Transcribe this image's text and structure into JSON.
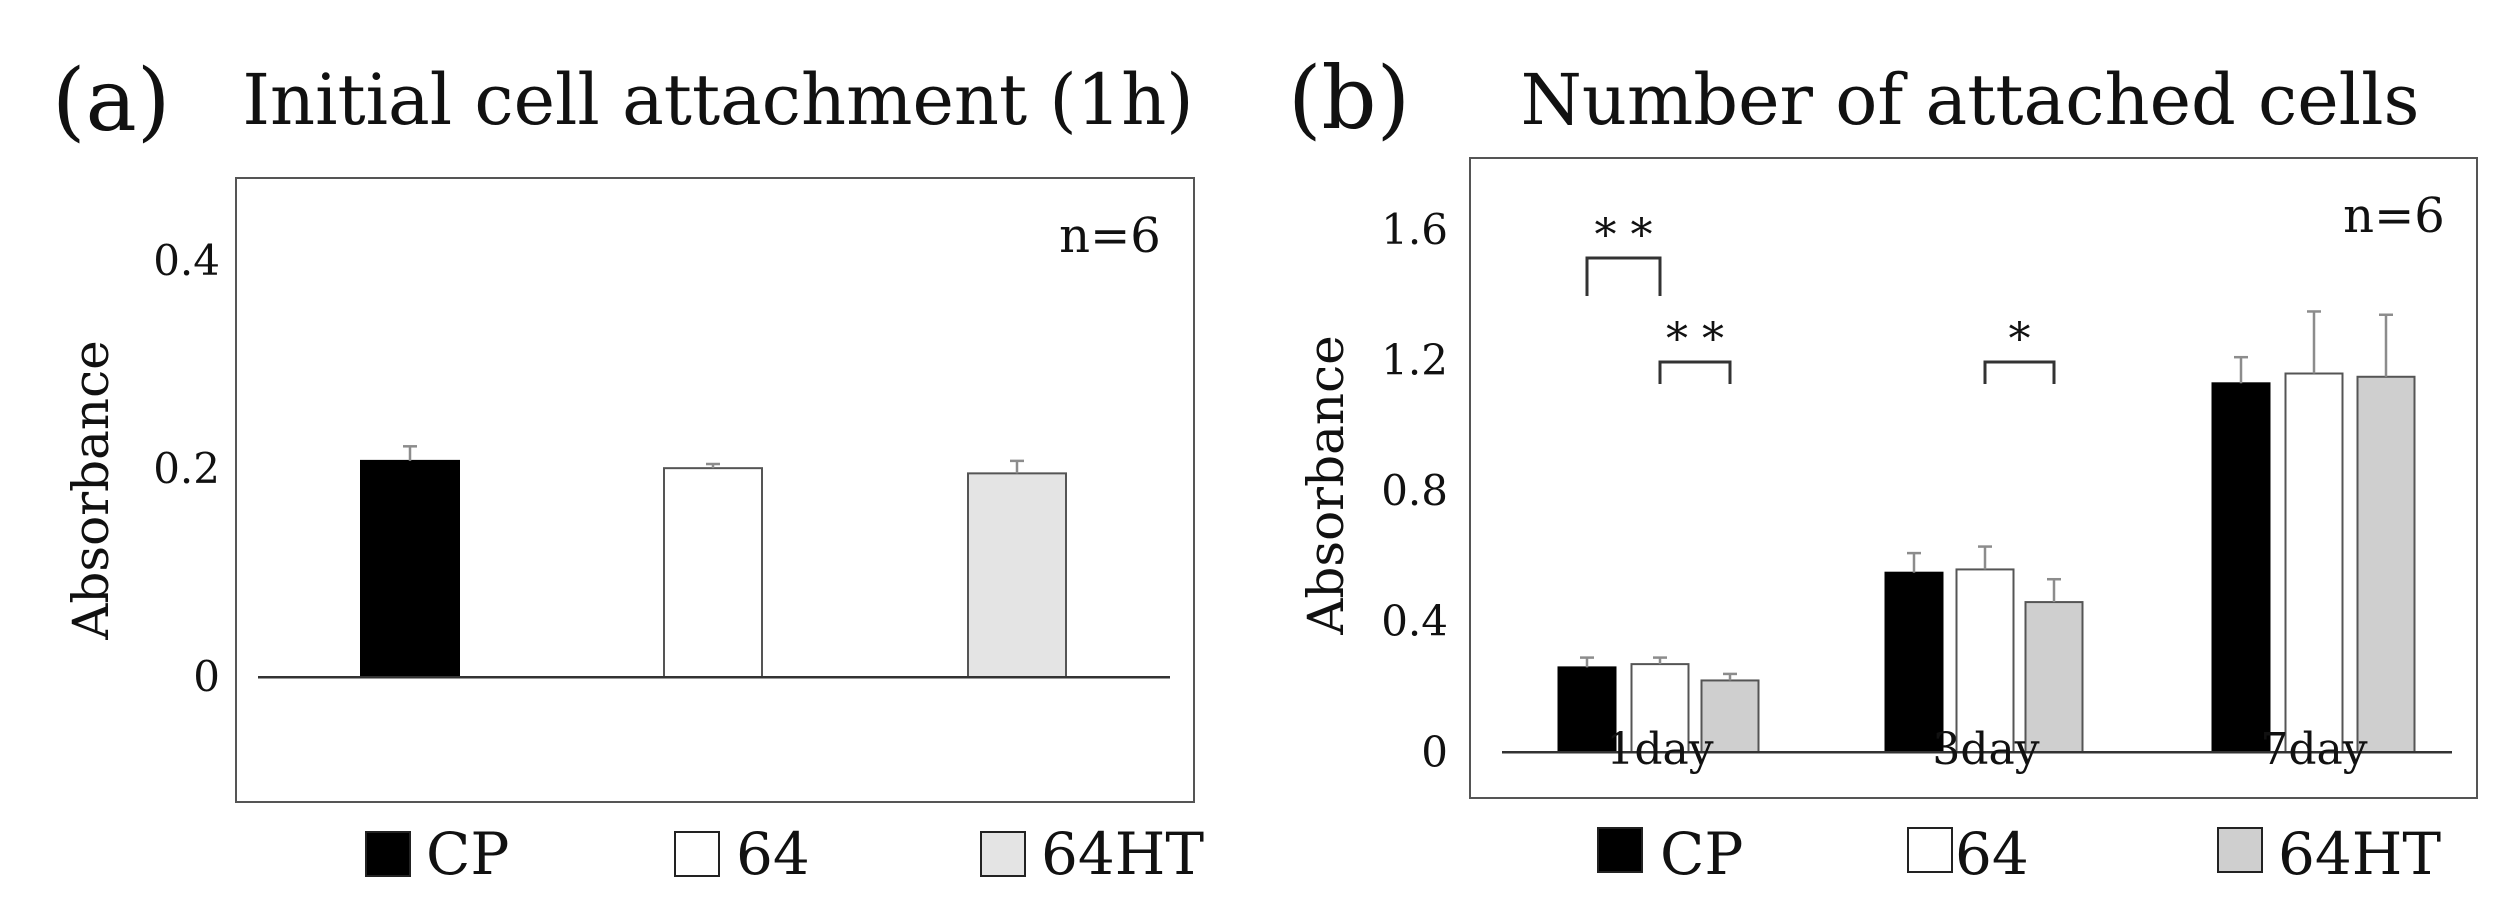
{
  "chart_data": [
    {
      "panel": "(a)",
      "type": "bar",
      "title": "Initial cell attachment (1h)",
      "xlabel": "",
      "ylabel": "Absorbance",
      "ylim": [
        -0.12,
        0.48
      ],
      "yticks": [
        0,
        0.2,
        0.4
      ],
      "ytick_labels": [
        "0",
        "0.2",
        "0.4"
      ],
      "annotation": "n=6",
      "categories": [
        ""
      ],
      "series": [
        {
          "name": "CP",
          "values": [
            0.208
          ],
          "errors": [
            0.014
          ],
          "color": "#000000"
        },
        {
          "name": "64",
          "values": [
            0.201
          ],
          "errors": [
            0.004
          ],
          "color": "#ffffff"
        },
        {
          "name": "64HT",
          "values": [
            0.196
          ],
          "errors": [
            0.012
          ],
          "color": "#e4e4e4"
        }
      ],
      "significance": [],
      "legend": [
        "CP",
        "64",
        "64HT"
      ]
    },
    {
      "panel": "(b)",
      "type": "bar",
      "title": "Number of attached cells",
      "xlabel": "",
      "ylabel": "Absorbance",
      "ylim": [
        -0.14,
        1.82
      ],
      "yticks": [
        0,
        0.4,
        0.8,
        1.2,
        1.6
      ],
      "ytick_labels": [
        "0",
        "0.4",
        "0.8",
        "1.2",
        "1.6"
      ],
      "annotation": "n=6",
      "categories": [
        "1day",
        "3day",
        "7day"
      ],
      "series": [
        {
          "name": "CP",
          "values": [
            0.26,
            0.55,
            1.13
          ],
          "errors": [
            0.03,
            0.06,
            0.08
          ],
          "color": "#000000"
        },
        {
          "name": "64",
          "values": [
            0.27,
            0.56,
            1.16
          ],
          "errors": [
            0.02,
            0.07,
            0.19
          ],
          "color": "#ffffff"
        },
        {
          "name": "64HT",
          "values": [
            0.22,
            0.46,
            1.15
          ],
          "errors": [
            0.02,
            0.07,
            0.19
          ],
          "color": "#cfcfcf"
        }
      ],
      "significance": [
        {
          "group": 0,
          "from": 0,
          "to": 1,
          "label": "* *"
        },
        {
          "group": 0,
          "from": 1,
          "to": 2,
          "label": "* *"
        },
        {
          "group": 1,
          "from": 1,
          "to": 2,
          "label": "*"
        }
      ],
      "legend": [
        "CP",
        "64",
        "64HT"
      ]
    }
  ]
}
